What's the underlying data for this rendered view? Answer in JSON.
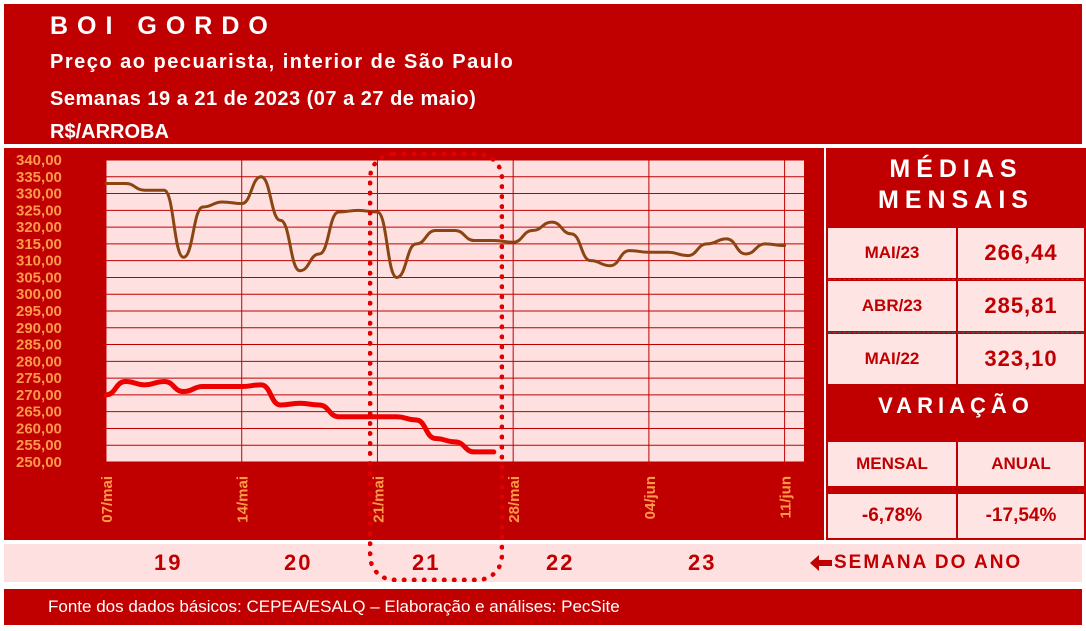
{
  "header": {
    "title": "BOI GORDO",
    "subtitle": "Preço ao pecuarista, interior de São Paulo",
    "period": "Semanas 19 a 21 de 2023 (07 a 27 de maio)",
    "unit": "R$/ARROBA"
  },
  "colors": {
    "background_red": "#c00000",
    "plot_pink": "#ffe0e0",
    "series_brown": "#8b4513",
    "series_red": "#ee0000"
  },
  "chart_data": {
    "type": "line",
    "title": "",
    "xlabel": "",
    "ylabel": "",
    "ylim": [
      250,
      340
    ],
    "y_ticks": [
      "340,00",
      "335,00",
      "330,00",
      "325,00",
      "320,00",
      "315,00",
      "310,00",
      "305,00",
      "300,00",
      "295,00",
      "290,00",
      "285,00",
      "280,00",
      "275,00",
      "270,00",
      "265,00",
      "260,00",
      "255,00",
      "250,00"
    ],
    "x_tick_labels": [
      "07/mai",
      "14/mai",
      "21/mai",
      "28/mai",
      "04/jun",
      "11/jun"
    ],
    "x_domain_days": [
      0,
      36
    ],
    "x_tick_days": [
      0,
      7,
      14,
      21,
      28,
      35
    ],
    "grid": true,
    "series": [
      {
        "color": "#8b4513",
        "points": [
          [
            0,
            333
          ],
          [
            1,
            333
          ],
          [
            2,
            331
          ],
          [
            3,
            331
          ],
          [
            4,
            311
          ],
          [
            5,
            326
          ],
          [
            6,
            327.5
          ],
          [
            7,
            327
          ],
          [
            8,
            335
          ],
          [
            9,
            322
          ],
          [
            10,
            307
          ],
          [
            11,
            312
          ],
          [
            12,
            324.5
          ],
          [
            13,
            325
          ],
          [
            14,
            324.5
          ],
          [
            15,
            305
          ],
          [
            16,
            315
          ],
          [
            17,
            319
          ],
          [
            18,
            319
          ],
          [
            19,
            316
          ],
          [
            20,
            316
          ],
          [
            21,
            315.5
          ],
          [
            22,
            319
          ],
          [
            23,
            321.5
          ],
          [
            24,
            318
          ],
          [
            25,
            310
          ],
          [
            26,
            308.5
          ],
          [
            27,
            313
          ],
          [
            28,
            312.5
          ],
          [
            29,
            312.5
          ],
          [
            30,
            311.5
          ],
          [
            31,
            315
          ],
          [
            32,
            316.5
          ],
          [
            33,
            312
          ],
          [
            34,
            315
          ],
          [
            35,
            314.5
          ]
        ]
      },
      {
        "color": "#ee0000",
        "points": [
          [
            0,
            270
          ],
          [
            1,
            274
          ],
          [
            2,
            273
          ],
          [
            3,
            274
          ],
          [
            4,
            271
          ],
          [
            5,
            272.5
          ],
          [
            6,
            272.5
          ],
          [
            7,
            272.5
          ],
          [
            8,
            273
          ],
          [
            9,
            267
          ],
          [
            10,
            267.5
          ],
          [
            11,
            267
          ],
          [
            12,
            263.5
          ],
          [
            13,
            263.5
          ],
          [
            14,
            263.5
          ],
          [
            15,
            263.5
          ],
          [
            16,
            262.5
          ],
          [
            17,
            257
          ],
          [
            18,
            256
          ],
          [
            19,
            253
          ],
          [
            20,
            253
          ]
        ]
      }
    ]
  },
  "sidebar": {
    "medias_title_line1": "MÉDIAS",
    "medias_title_line2": "MENSAIS",
    "rows": [
      {
        "label": "MAI/23",
        "value": "266,44"
      },
      {
        "label": "ABR/23",
        "value": "285,81"
      },
      {
        "label": "MAI/22",
        "value": "323,10"
      }
    ],
    "variacao_title": "VARIAÇÃO",
    "variacao_headers": [
      "MENSAL",
      "ANUAL"
    ],
    "variacao_values": [
      "-6,78%",
      "-17,54%"
    ]
  },
  "weeks": {
    "numbers": [
      "19",
      "20",
      "21",
      "22",
      "23"
    ],
    "label": "SEMANA DO ANO",
    "arrow_icon": "left-arrow-icon"
  },
  "footer": {
    "source": "Fonte dos dados básicos: CEPEA/ESALQ – Elaboração e análises: PecSite"
  }
}
